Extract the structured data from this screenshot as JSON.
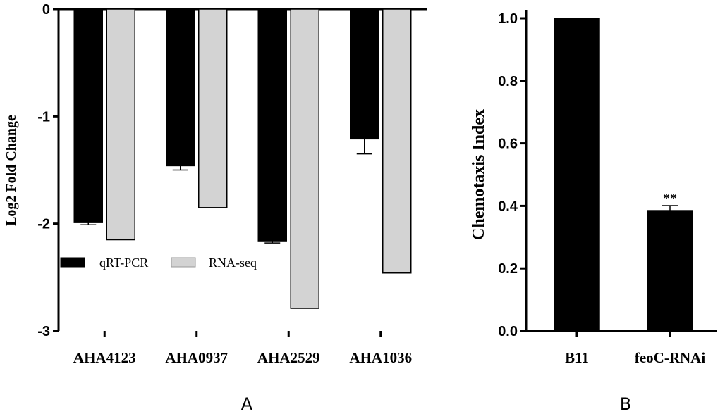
{
  "panels": {
    "A": {
      "label": "A"
    },
    "B": {
      "label": "B"
    }
  },
  "chart_data": [
    {
      "type": "bar",
      "title": "",
      "xlabel": "",
      "ylabel": "Log2 Fold Change",
      "ylim": [
        -3,
        0
      ],
      "yticks": [
        0,
        -1,
        -2,
        -3
      ],
      "categories": [
        "AHA4123",
        "AHA0937",
        "AHA2529",
        "AHA1036"
      ],
      "series": [
        {
          "name": "qRT-PCR",
          "color": "#000000",
          "values": [
            -1.99,
            -1.46,
            -2.16,
            -1.21
          ],
          "errors": [
            0.02,
            0.04,
            0.02,
            0.14
          ]
        },
        {
          "name": "RNA-seq",
          "color": "#d3d3d3",
          "values": [
            -2.15,
            -1.85,
            -2.79,
            -2.46
          ]
        }
      ],
      "legend": "middle-left",
      "grid": false
    },
    {
      "type": "bar",
      "title": "",
      "xlabel": "",
      "ylabel": "Chemotaxis Index",
      "ylim": [
        0,
        1.0
      ],
      "yticks": [
        0.0,
        0.2,
        0.4,
        0.6,
        0.8,
        1.0
      ],
      "categories": [
        "B11",
        "feoC-RNAi"
      ],
      "values": [
        1.0,
        0.385
      ],
      "errors": [
        0,
        0.016
      ],
      "color": "#000000",
      "annotations": [
        "",
        "**"
      ],
      "grid": false
    }
  ]
}
